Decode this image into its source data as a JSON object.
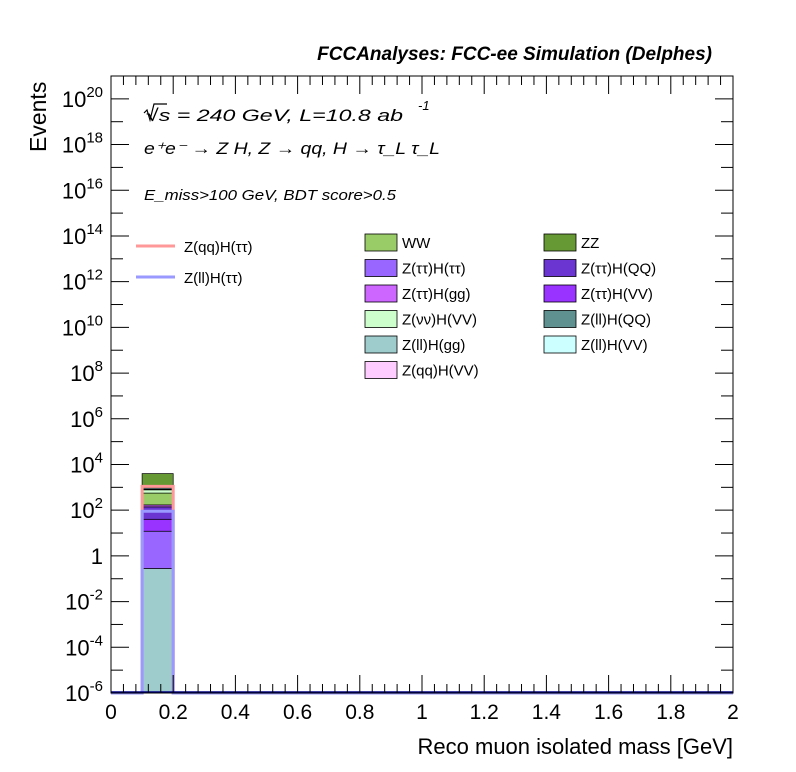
{
  "header": {
    "title": "FCCAnalyses: FCC-ee Simulation (Delphes)"
  },
  "annotations": {
    "energy": "√s = 240 GeV, L=10.8 ab",
    "lumi_exponent": "-1",
    "process": "e⁺e⁻ → Z H, Z → qq, H → τ_L τ_L",
    "selection": "E_miss>100 GeV, BDT score>0.5"
  },
  "colors": {
    "frame": "#000000",
    "background": "#ffffff"
  },
  "chart_data": {
    "type": "bar",
    "stacked": true,
    "log_y": true,
    "xlabel": "Reco muon isolated mass [GeV]",
    "ylabel": "Events",
    "xlim": [
      0,
      2
    ],
    "ylim": [
      1e-06,
      1e+21
    ],
    "x_ticks": [
      "0",
      "0.2",
      "0.4",
      "0.6",
      "0.8",
      "1",
      "1.2",
      "1.4",
      "1.6",
      "1.8",
      "2"
    ],
    "y_ticks": [
      {
        "base": "10",
        "exp": "-6",
        "value": 1e-06
      },
      {
        "base": "10",
        "exp": "-4",
        "value": 0.0001
      },
      {
        "base": "10",
        "exp": "-2",
        "value": 0.01
      },
      {
        "base": "1",
        "exp": "",
        "value": 1
      },
      {
        "base": "10",
        "exp": "2",
        "value": 100.0
      },
      {
        "base": "10",
        "exp": "4",
        "value": 10000.0
      },
      {
        "base": "10",
        "exp": "6",
        "value": 1000000.0
      },
      {
        "base": "10",
        "exp": "8",
        "value": 100000000.0
      },
      {
        "base": "10",
        "exp": "10",
        "value": 10000000000.0
      },
      {
        "base": "10",
        "exp": "12",
        "value": 1000000000000.0
      },
      {
        "base": "10",
        "exp": "14",
        "value": 100000000000000.0
      },
      {
        "base": "10",
        "exp": "16",
        "value": 1e+16
      },
      {
        "base": "10",
        "exp": "18",
        "value": 1e+18
      },
      {
        "base": "10",
        "exp": "20",
        "value": 1e+20
      }
    ],
    "bin": [
      0.1,
      0.2
    ],
    "stack": [
      {
        "name": "Z(ll)H(gg)",
        "color": "#9ecbcb",
        "cumulative": 0.28
      },
      {
        "name": "Z(ττ)H(ττ)",
        "color": "#9966ff",
        "cumulative": 12
      },
      {
        "name": "Z(ττ)H(VV)",
        "color": "#9933ff",
        "cumulative": 40
      },
      {
        "name": "Z(ττ)H(QQ)",
        "color": "#6a35d0",
        "cumulative": 140
      },
      {
        "name": "Z(ττ)H(gg)",
        "color": "#cc66ff",
        "cumulative": 170
      },
      {
        "name": "WW",
        "color": "#99cc66",
        "cumulative": 560
      },
      {
        "name": "Z(νν)H(VV)",
        "color": "#ccffcc",
        "cumulative": 780
      },
      {
        "name": "Z(ll)H(QQ)",
        "color": "#5f9191",
        "cumulative": 830
      },
      {
        "name": "Z(ll)H(VV)",
        "color": "#ccffff",
        "cumulative": 930
      },
      {
        "name": "Z(qq)H(VV)",
        "color": "#ffccff",
        "cumulative": 960
      },
      {
        "name": "ZZ",
        "color": "#669933",
        "cumulative": 4000
      }
    ],
    "signals": [
      {
        "name": "Z(qq)H(ττ)",
        "color": "#ff9999",
        "value": 1100
      },
      {
        "name": "Z(ll)H(ττ)",
        "color": "#9999ff",
        "value": 90
      }
    ],
    "legend_signals": [
      {
        "name": "Z(qq)H(ττ)",
        "color": "#ff9999"
      },
      {
        "name": "Z(ll)H(ττ)",
        "color": "#9999ff"
      }
    ],
    "legend_backgrounds": [
      {
        "name": "WW",
        "color": "#99cc66"
      },
      {
        "name": "ZZ",
        "color": "#669933"
      },
      {
        "name": "Z(ττ)H(ττ)",
        "color": "#9966ff"
      },
      {
        "name": "Z(ττ)H(QQ)",
        "color": "#6a35d0"
      },
      {
        "name": "Z(ττ)H(gg)",
        "color": "#cc66ff"
      },
      {
        "name": "Z(ττ)H(VV)",
        "color": "#9933ff"
      },
      {
        "name": "Z(νν)H(VV)",
        "color": "#ccffcc"
      },
      {
        "name": "Z(ll)H(QQ)",
        "color": "#5f9191"
      },
      {
        "name": "Z(ll)H(gg)",
        "color": "#9ecbcb"
      },
      {
        "name": "Z(ll)H(VV)",
        "color": "#ccffff"
      },
      {
        "name": "Z(qq)H(VV)",
        "color": "#ffccff"
      }
    ],
    "legend_placement": "top-center",
    "grid": false
  }
}
